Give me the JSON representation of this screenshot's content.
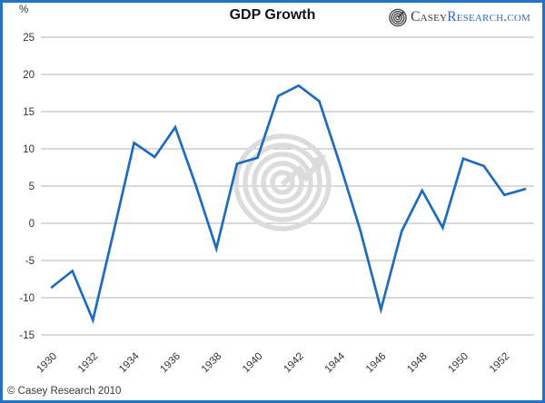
{
  "header": {
    "unit_label": "%",
    "title": "GDP Growth",
    "logo": {
      "brand_part1": "Casey",
      "brand_part2": "Research.com"
    }
  },
  "footer": {
    "copyright": "© Casey Research 2010"
  },
  "colors": {
    "frame_border": "#2173c4",
    "line": "#1e6cbd",
    "grid": "#b5b5b5",
    "axis_text": "#333333",
    "watermark": "#dcdcdc",
    "logo_primary": "#36383c",
    "logo_secondary": "#3a68b4"
  },
  "chart_data": {
    "type": "line",
    "title": "GDP Growth",
    "xlabel": "",
    "ylabel": "%",
    "x": [
      1930,
      1931,
      1932,
      1933,
      1934,
      1935,
      1936,
      1937,
      1938,
      1939,
      1940,
      1941,
      1942,
      1943,
      1944,
      1945,
      1946,
      1947,
      1948,
      1949,
      1950,
      1951,
      1952,
      1953
    ],
    "series": [
      {
        "name": "GDP Growth",
        "values": [
          -8.6,
          -6.4,
          -13.0,
          -1.2,
          10.8,
          8.9,
          12.9,
          5.1,
          -3.4,
          8.0,
          8.8,
          17.1,
          18.5,
          16.4,
          8.0,
          -1.0,
          -11.6,
          -1.1,
          4.4,
          -0.6,
          8.7,
          7.7,
          3.8,
          4.6
        ]
      }
    ],
    "ylim": [
      -15,
      25
    ],
    "ytick_step": 5,
    "xticks": [
      1930,
      1932,
      1934,
      1936,
      1938,
      1940,
      1942,
      1944,
      1946,
      1948,
      1950,
      1952
    ],
    "grid": true,
    "legend": "none",
    "line_color": "#1e6cbd",
    "grid_color": "#b5b5b5"
  }
}
